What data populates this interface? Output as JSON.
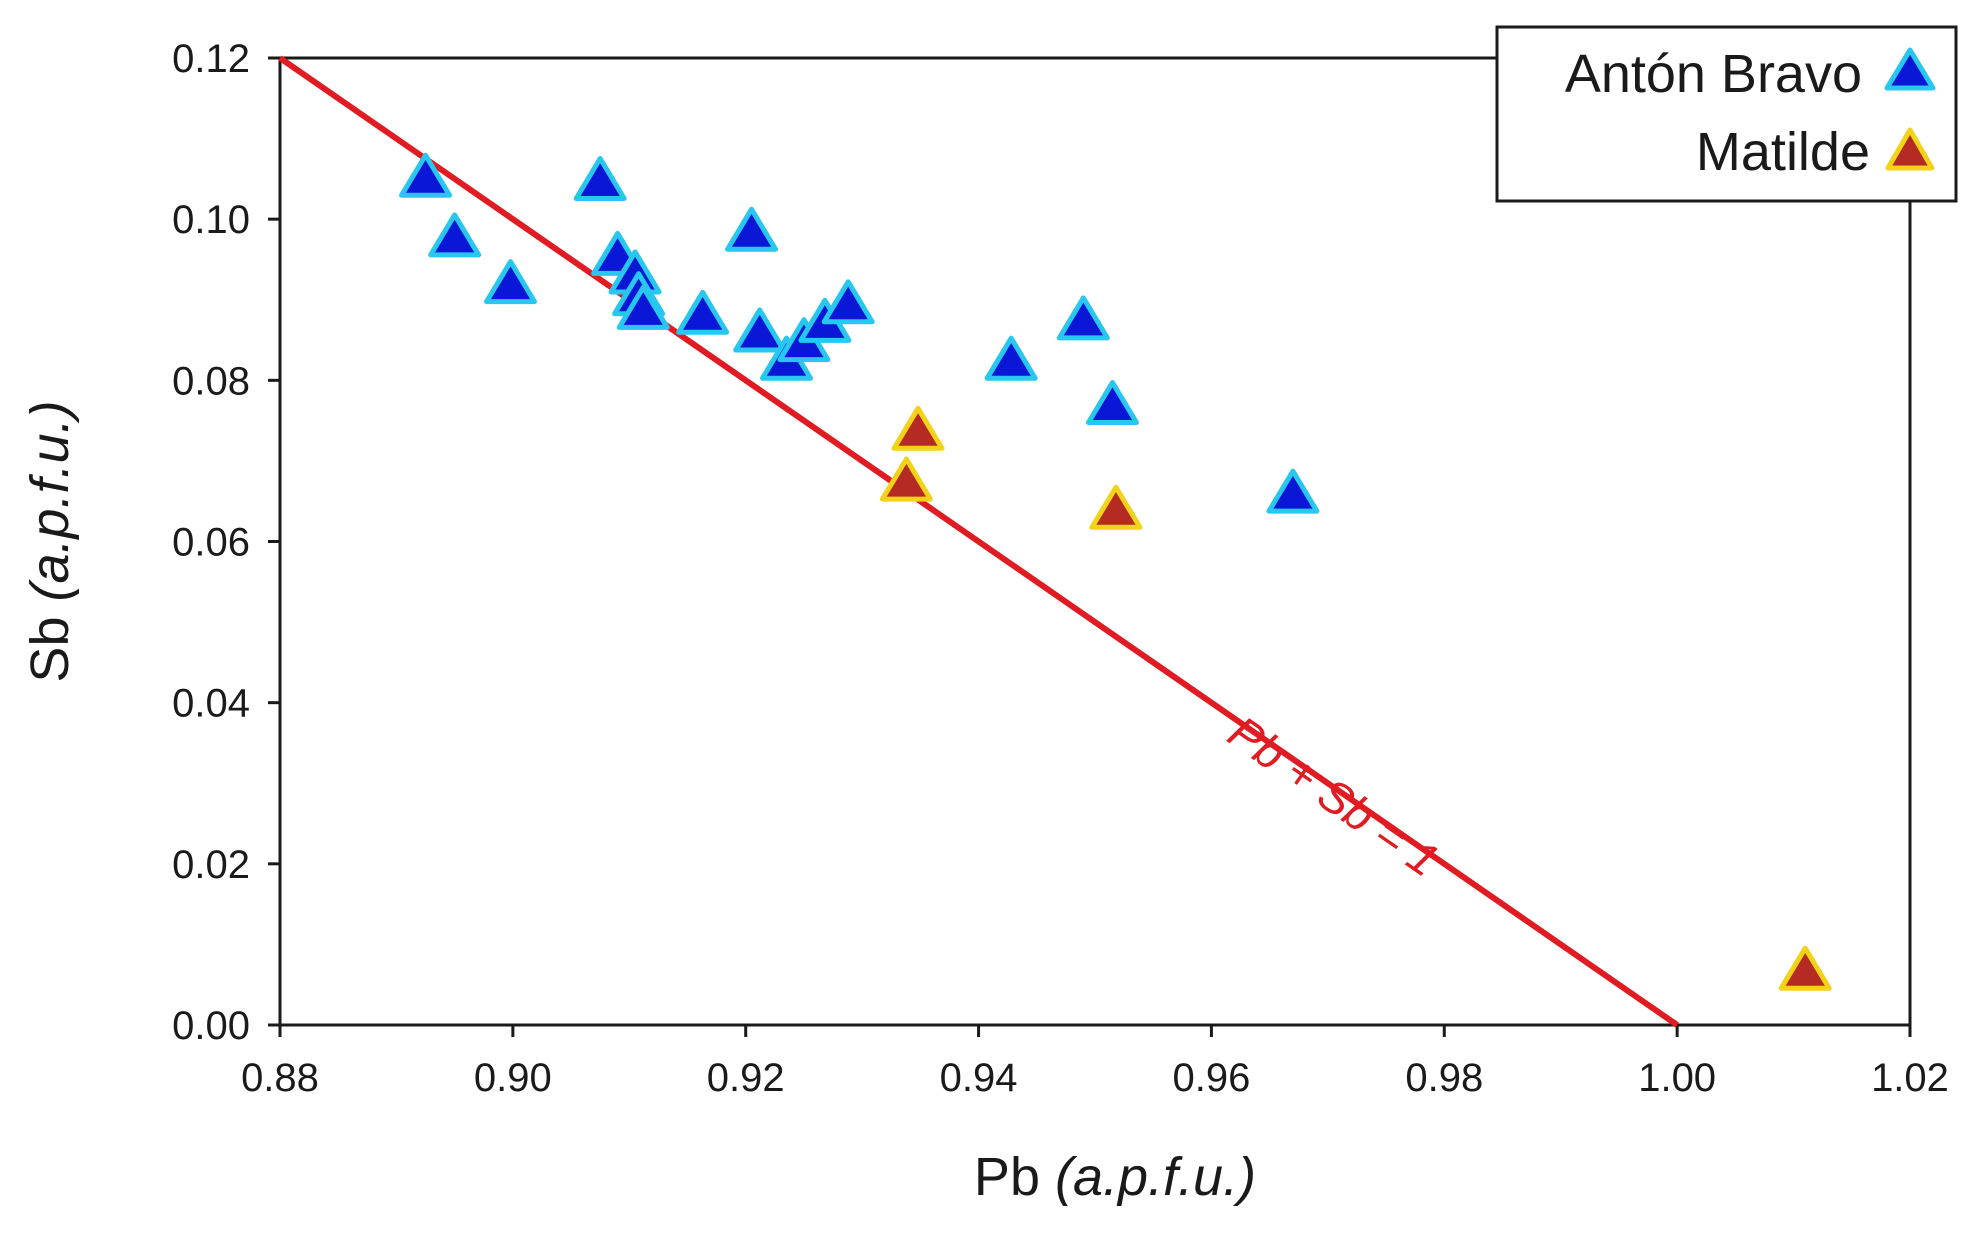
{
  "chart_data": {
    "type": "scatter",
    "xlabel": {
      "main": "Pb",
      "unit": "(a.p.f.u.)"
    },
    "ylabel": {
      "main": "Sb",
      "unit": "(a.p.f.u.)"
    },
    "xlim": [
      0.88,
      1.02
    ],
    "ylim": [
      0.0,
      0.12
    ],
    "x_ticks": [
      "0.88",
      "0.90",
      "0.92",
      "0.94",
      "0.96",
      "0.98",
      "1.00",
      "1.02"
    ],
    "y_ticks": [
      "0.00",
      "0.02",
      "0.04",
      "0.06",
      "0.08",
      "0.10",
      "0.12"
    ],
    "grid": false,
    "legend_position": "top-right",
    "reference_line": {
      "label": "Pb + Sb = 1",
      "color": "#e01b22",
      "points": [
        [
          0.88,
          0.12
        ],
        [
          1.0,
          0.0
        ]
      ]
    },
    "series": [
      {
        "name": "Antón Bravo",
        "marker": "triangle",
        "fill": "#0a17d6",
        "stroke": "#27c7ef",
        "points": [
          [
            0.8925,
            0.1052
          ],
          [
            0.895,
            0.0978
          ],
          [
            0.8998,
            0.092
          ],
          [
            0.9075,
            0.1048
          ],
          [
            0.909,
            0.0955
          ],
          [
            0.9105,
            0.0932
          ],
          [
            0.9108,
            0.0905
          ],
          [
            0.9112,
            0.0888
          ],
          [
            0.9163,
            0.0882
          ],
          [
            0.9205,
            0.0985
          ],
          [
            0.9212,
            0.086
          ],
          [
            0.9235,
            0.0825
          ],
          [
            0.925,
            0.0848
          ],
          [
            0.9268,
            0.0872
          ],
          [
            0.9288,
            0.0895
          ],
          [
            0.9428,
            0.0825
          ],
          [
            0.949,
            0.0875
          ],
          [
            0.9515,
            0.077
          ],
          [
            0.967,
            0.066
          ]
        ]
      },
      {
        "name": "Matilde",
        "marker": "triangle",
        "fill": "#b52a22",
        "stroke": "#f3d21a",
        "points": [
          [
            0.9348,
            0.0738
          ],
          [
            0.9338,
            0.0675
          ],
          [
            0.9518,
            0.064
          ],
          [
            1.011,
            0.0068
          ]
        ]
      }
    ]
  }
}
